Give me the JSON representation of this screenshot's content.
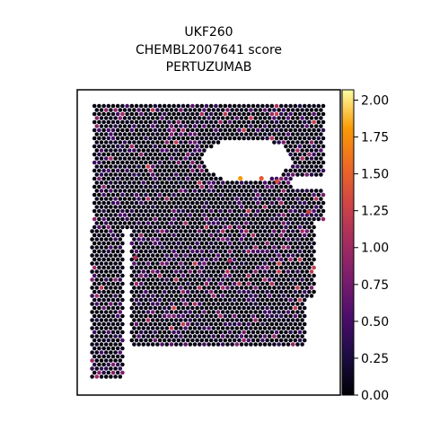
{
  "chart_data": {
    "type": "scatter",
    "title_lines": [
      "UKF260",
      "CHEMBL2007641 score",
      "PERTUZUMAB"
    ],
    "colorbar": {
      "colormap": "inferno",
      "range": [
        0.0,
        2.07
      ],
      "ticks": [
        "0.00",
        "0.25",
        "0.50",
        "0.75",
        "1.00",
        "1.25",
        "1.50",
        "1.75",
        "2.00"
      ]
    },
    "x_axis_visible": false,
    "y_axis_visible": false,
    "grid": false,
    "highlights": [
      {
        "x": 0.62,
        "y": 0.71,
        "value": 1.8
      },
      {
        "x": 0.7,
        "y": 0.71,
        "value": 1.45
      },
      {
        "x": 0.76,
        "y": 0.7,
        "value": 1.35
      },
      {
        "x": 0.88,
        "y": 0.6,
        "value": 1.25
      },
      {
        "x": 0.22,
        "y": 0.45,
        "value": 1.1
      },
      {
        "x": 0.58,
        "y": 0.44,
        "value": 1.0
      }
    ]
  }
}
